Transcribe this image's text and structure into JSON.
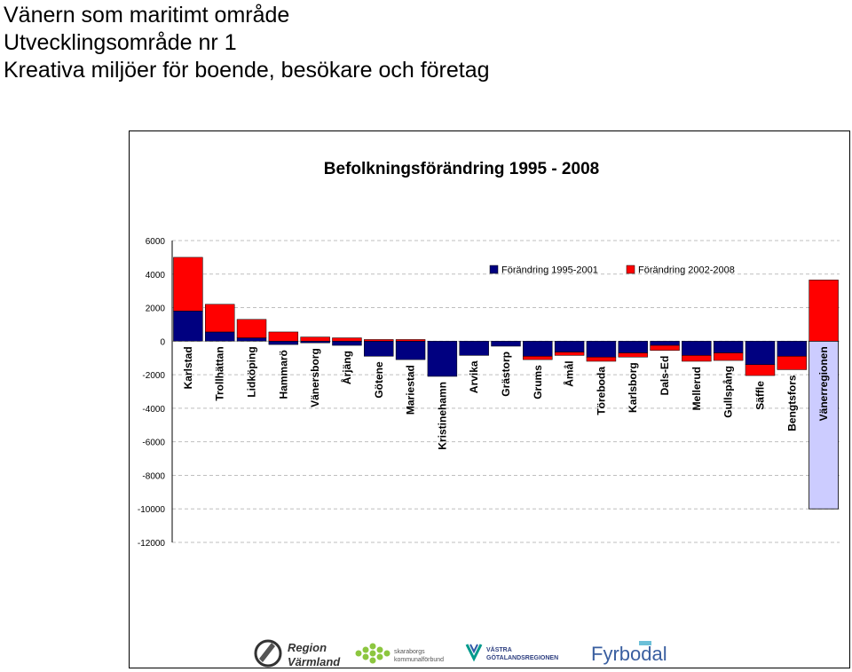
{
  "heading": {
    "line1": "Vänern som maritimt område",
    "line2": "Utvecklingsområde nr 1",
    "line3": "Kreativa miljöer för boende, besökare och företag"
  },
  "logos": [
    {
      "line1": "Region",
      "line2": "Värmland"
    },
    {
      "line1": "skaraborgs",
      "line2": "kommunalförbund"
    },
    {
      "line1": "VÄSTRA",
      "line2": "GÖTALANDSREGIONEN"
    },
    {
      "line1": "Fyrbodal",
      "line2": ""
    }
  ],
  "colors": {
    "series1": "#000080",
    "series2": "#ff0000",
    "highlight_category_bg": "#ccccff",
    "grid": "#bfbfbf"
  },
  "chart_data": {
    "type": "bar",
    "stacked": true,
    "title": "Befolkningsförändring 1995 - 2008",
    "xlabel": "",
    "ylabel": "",
    "ylim": [
      -12000,
      6000
    ],
    "yticks": [
      6000,
      4000,
      2000,
      0,
      -2000,
      -4000,
      -6000,
      -8000,
      -10000,
      -12000
    ],
    "grid": true,
    "legend_position": "top-right",
    "categories": [
      "Karlstad",
      "Trollhättan",
      "Lidköping",
      "Hammarö",
      "Vänersborg",
      "Årjäng",
      "Götene",
      "Mariestad",
      "Kristinehamn",
      "Arvika",
      "Grästorp",
      "Grums",
      "Åmål",
      "Töreboda",
      "Karlsborg",
      "Dals-Ed",
      "Mellerud",
      "Gullspång",
      "Säffle",
      "Bengtsfors",
      "Vänerregionen"
    ],
    "highlight_category": "Vänerregionen",
    "series": [
      {
        "name": "Förändring 1995-2001",
        "color": "#000080",
        "values": [
          1800,
          550,
          200,
          -200,
          -100,
          -250,
          -900,
          -1100,
          -2100,
          -850,
          -300,
          -900,
          -650,
          -950,
          -700,
          -250,
          -850,
          -700,
          -1400,
          -900,
          -10000
        ]
      },
      {
        "name": "Förändring 2002-2008",
        "color": "#ff0000",
        "values": [
          3200,
          1650,
          1100,
          550,
          250,
          200,
          100,
          100,
          0,
          0,
          0,
          -200,
          -200,
          -250,
          -250,
          -300,
          -350,
          -450,
          -650,
          -800,
          3650
        ]
      }
    ]
  }
}
